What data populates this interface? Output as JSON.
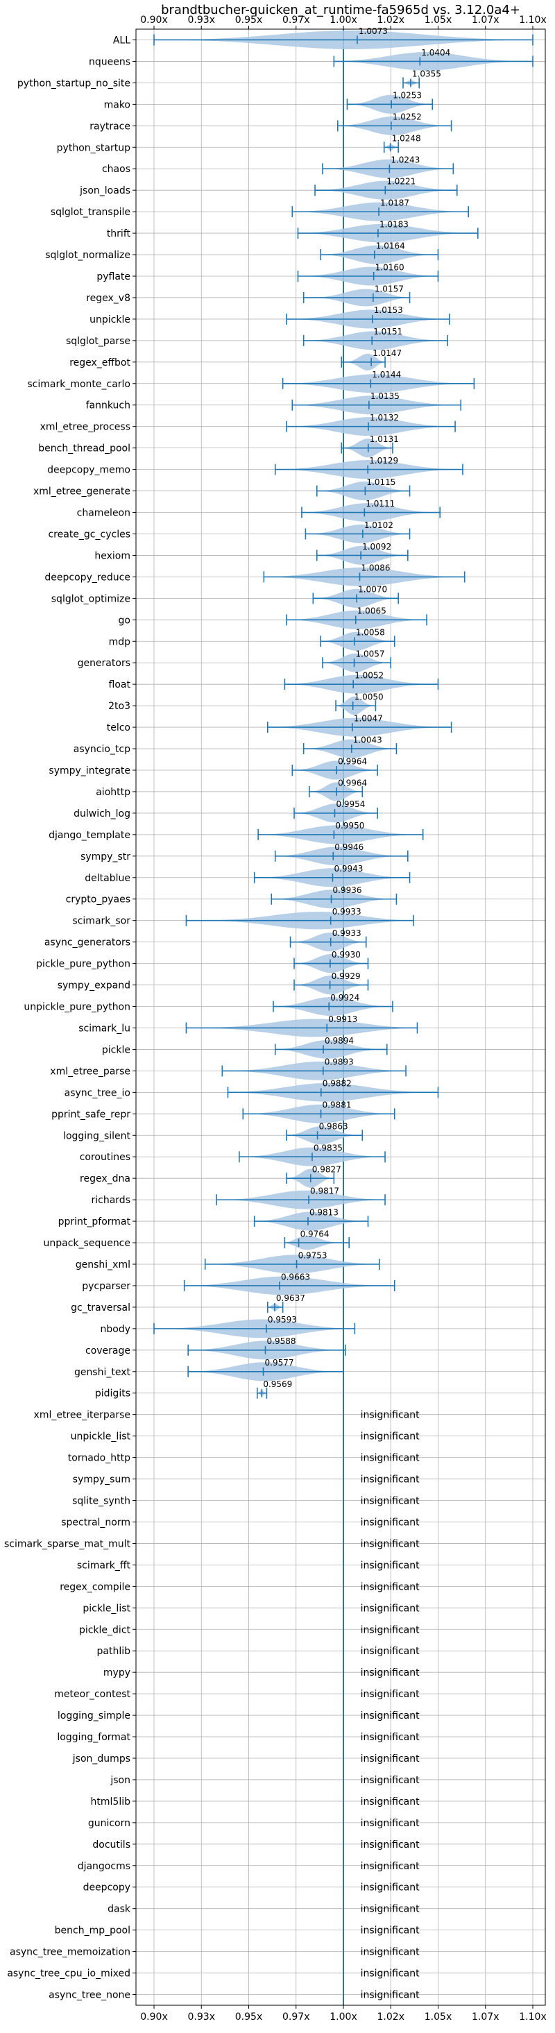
{
  "chart_data": {
    "type": "violin",
    "title": "brandtbucher-quicken_at_runtime-fa5965d vs. 3.12.0a4+",
    "xlim": [
      0.9,
      1.1
    ],
    "xticks": [
      "0.90x",
      "0.93x",
      "0.95x",
      "0.97x",
      "1.00x",
      "1.02x",
      "1.05x",
      "1.07x",
      "1.10x"
    ],
    "xtick_values": [
      0.9,
      0.925,
      0.95,
      0.975,
      1.0,
      1.025,
      1.05,
      1.075,
      1.1
    ],
    "grid": true,
    "reference_line": 1.0,
    "insignificant_label": "insignificant",
    "benchmarks": [
      {
        "name": "ALL",
        "value": "1.0073",
        "mean": 1.0073,
        "min": 0.9,
        "max": 1.1,
        "width": 0.4
      },
      {
        "name": "nqueens",
        "value": "1.0404",
        "mean": 1.0404,
        "min": 0.995,
        "max": 1.1,
        "width": 0.4
      },
      {
        "name": "python_startup_no_site",
        "value": "1.0355",
        "mean": 1.0355,
        "min": 1.0315,
        "max": 1.04,
        "width": 0.12
      },
      {
        "name": "mako",
        "value": "1.0253",
        "mean": 1.0253,
        "min": 1.002,
        "max": 1.047,
        "width": 0.4
      },
      {
        "name": "raytrace",
        "value": "1.0252",
        "mean": 1.0252,
        "min": 0.997,
        "max": 1.057,
        "width": 0.4
      },
      {
        "name": "python_startup",
        "value": "1.0248",
        "mean": 1.0248,
        "min": 1.0215,
        "max": 1.029,
        "width": 0.12
      },
      {
        "name": "chaos",
        "value": "1.0243",
        "mean": 1.0243,
        "min": 0.989,
        "max": 1.058,
        "width": 0.4
      },
      {
        "name": "json_loads",
        "value": "1.0221",
        "mean": 1.0221,
        "min": 0.985,
        "max": 1.06,
        "width": 0.4
      },
      {
        "name": "sqlglot_transpile",
        "value": "1.0187",
        "mean": 1.0187,
        "min": 0.973,
        "max": 1.066,
        "width": 0.4
      },
      {
        "name": "thrift",
        "value": "1.0183",
        "mean": 1.0183,
        "min": 0.976,
        "max": 1.071,
        "width": 0.4
      },
      {
        "name": "sqlglot_normalize",
        "value": "1.0164",
        "mean": 1.0164,
        "min": 0.988,
        "max": 1.05,
        "width": 0.4
      },
      {
        "name": "pyflate",
        "value": "1.0160",
        "mean": 1.016,
        "min": 0.976,
        "max": 1.05,
        "width": 0.4
      },
      {
        "name": "regex_v8",
        "value": "1.0157",
        "mean": 1.0157,
        "min": 0.979,
        "max": 1.035,
        "width": 0.4
      },
      {
        "name": "unpickle",
        "value": "1.0153",
        "mean": 1.0153,
        "min": 0.97,
        "max": 1.056,
        "width": 0.4
      },
      {
        "name": "sqlglot_parse",
        "value": "1.0151",
        "mean": 1.0151,
        "min": 0.979,
        "max": 1.055,
        "width": 0.4
      },
      {
        "name": "regex_effbot",
        "value": "1.0147",
        "mean": 1.0147,
        "min": 0.999,
        "max": 1.022,
        "width": 0.4
      },
      {
        "name": "scimark_monte_carlo",
        "value": "1.0144",
        "mean": 1.0144,
        "min": 0.968,
        "max": 1.069,
        "width": 0.4
      },
      {
        "name": "fannkuch",
        "value": "1.0135",
        "mean": 1.0135,
        "min": 0.973,
        "max": 1.062,
        "width": 0.4
      },
      {
        "name": "xml_etree_process",
        "value": "1.0132",
        "mean": 1.0132,
        "min": 0.97,
        "max": 1.059,
        "width": 0.4
      },
      {
        "name": "bench_thread_pool",
        "value": "1.0131",
        "mean": 1.0131,
        "min": 0.999,
        "max": 1.026,
        "width": 0.4
      },
      {
        "name": "deepcopy_memo",
        "value": "1.0129",
        "mean": 1.0129,
        "min": 0.964,
        "max": 1.063,
        "width": 0.4
      },
      {
        "name": "xml_etree_generate",
        "value": "1.0115",
        "mean": 1.0115,
        "min": 0.986,
        "max": 1.035,
        "width": 0.4
      },
      {
        "name": "chameleon",
        "value": "1.0111",
        "mean": 1.0111,
        "min": 0.978,
        "max": 1.051,
        "width": 0.4
      },
      {
        "name": "create_gc_cycles",
        "value": "1.0102",
        "mean": 1.0102,
        "min": 0.98,
        "max": 1.035,
        "width": 0.4
      },
      {
        "name": "hexiom",
        "value": "1.0092",
        "mean": 1.0092,
        "min": 0.986,
        "max": 1.034,
        "width": 0.4
      },
      {
        "name": "deepcopy_reduce",
        "value": "1.0086",
        "mean": 1.0086,
        "min": 0.958,
        "max": 1.064,
        "width": 0.4
      },
      {
        "name": "sqlglot_optimize",
        "value": "1.0070",
        "mean": 1.007,
        "min": 0.984,
        "max": 1.029,
        "width": 0.4
      },
      {
        "name": "go",
        "value": "1.0065",
        "mean": 1.0065,
        "min": 0.97,
        "max": 1.044,
        "width": 0.4
      },
      {
        "name": "mdp",
        "value": "1.0058",
        "mean": 1.0058,
        "min": 0.988,
        "max": 1.027,
        "width": 0.4
      },
      {
        "name": "generators",
        "value": "1.0057",
        "mean": 1.0057,
        "min": 0.989,
        "max": 1.025,
        "width": 0.4
      },
      {
        "name": "float",
        "value": "1.0052",
        "mean": 1.0052,
        "min": 0.969,
        "max": 1.05,
        "width": 0.4
      },
      {
        "name": "2to3",
        "value": "1.0050",
        "mean": 1.005,
        "min": 0.996,
        "max": 1.017,
        "width": 0.4
      },
      {
        "name": "telco",
        "value": "1.0047",
        "mean": 1.0047,
        "min": 0.96,
        "max": 1.057,
        "width": 0.4
      },
      {
        "name": "asyncio_tcp",
        "value": "1.0043",
        "mean": 1.0043,
        "min": 0.979,
        "max": 1.028,
        "width": 0.4
      },
      {
        "name": "sympy_integrate",
        "value": "0.9964",
        "mean": 0.9964,
        "min": 0.973,
        "max": 1.018,
        "width": 0.4
      },
      {
        "name": "aiohttp",
        "value": "0.9964",
        "mean": 0.9964,
        "min": 0.982,
        "max": 1.01,
        "width": 0.4
      },
      {
        "name": "dulwich_log",
        "value": "0.9954",
        "mean": 0.9954,
        "min": 0.974,
        "max": 1.018,
        "width": 0.4
      },
      {
        "name": "django_template",
        "value": "0.9950",
        "mean": 0.995,
        "min": 0.955,
        "max": 1.042,
        "width": 0.4
      },
      {
        "name": "sympy_str",
        "value": "0.9946",
        "mean": 0.9946,
        "min": 0.964,
        "max": 1.034,
        "width": 0.4
      },
      {
        "name": "deltablue",
        "value": "0.9943",
        "mean": 0.9943,
        "min": 0.953,
        "max": 1.035,
        "width": 0.4
      },
      {
        "name": "crypto_pyaes",
        "value": "0.9936",
        "mean": 0.9936,
        "min": 0.962,
        "max": 1.028,
        "width": 0.4
      },
      {
        "name": "scimark_sor",
        "value": "0.9933",
        "mean": 0.9933,
        "min": 0.917,
        "max": 1.037,
        "width": 0.4
      },
      {
        "name": "async_generators",
        "value": "0.9933",
        "mean": 0.9933,
        "min": 0.972,
        "max": 1.012,
        "width": 0.4
      },
      {
        "name": "pickle_pure_python",
        "value": "0.9930",
        "mean": 0.993,
        "min": 0.974,
        "max": 1.013,
        "width": 0.4
      },
      {
        "name": "sympy_expand",
        "value": "0.9929",
        "mean": 0.9929,
        "min": 0.974,
        "max": 1.013,
        "width": 0.4
      },
      {
        "name": "unpickle_pure_python",
        "value": "0.9924",
        "mean": 0.9924,
        "min": 0.963,
        "max": 1.026,
        "width": 0.4
      },
      {
        "name": "scimark_lu",
        "value": "0.9913",
        "mean": 0.9913,
        "min": 0.917,
        "max": 1.039,
        "width": 0.4
      },
      {
        "name": "pickle",
        "value": "0.9894",
        "mean": 0.9894,
        "min": 0.964,
        "max": 1.023,
        "width": 0.4
      },
      {
        "name": "xml_etree_parse",
        "value": "0.9893",
        "mean": 0.9893,
        "min": 0.936,
        "max": 1.033,
        "width": 0.4
      },
      {
        "name": "async_tree_io",
        "value": "0.9882",
        "mean": 0.9882,
        "min": 0.939,
        "max": 1.05,
        "width": 0.4
      },
      {
        "name": "pprint_safe_repr",
        "value": "0.9881",
        "mean": 0.9881,
        "min": 0.947,
        "max": 1.027,
        "width": 0.4
      },
      {
        "name": "logging_silent",
        "value": "0.9863",
        "mean": 0.9863,
        "min": 0.97,
        "max": 1.01,
        "width": 0.4
      },
      {
        "name": "coroutines",
        "value": "0.9835",
        "mean": 0.9835,
        "min": 0.945,
        "max": 1.022,
        "width": 0.4
      },
      {
        "name": "regex_dna",
        "value": "0.9827",
        "mean": 0.9827,
        "min": 0.97,
        "max": 0.995,
        "width": 0.4
      },
      {
        "name": "richards",
        "value": "0.9817",
        "mean": 0.9817,
        "min": 0.933,
        "max": 1.022,
        "width": 0.4
      },
      {
        "name": "pprint_pformat",
        "value": "0.9813",
        "mean": 0.9813,
        "min": 0.953,
        "max": 1.013,
        "width": 0.4
      },
      {
        "name": "unpack_sequence",
        "value": "0.9764",
        "mean": 0.9764,
        "min": 0.969,
        "max": 1.003,
        "width": 0.4
      },
      {
        "name": "genshi_xml",
        "value": "0.9753",
        "mean": 0.9753,
        "min": 0.927,
        "max": 1.019,
        "width": 0.4
      },
      {
        "name": "pycparser",
        "value": "0.9663",
        "mean": 0.9663,
        "min": 0.916,
        "max": 1.027,
        "width": 0.4
      },
      {
        "name": "gc_traversal",
        "value": "0.9637",
        "mean": 0.9637,
        "min": 0.96,
        "max": 0.968,
        "width": 0.15
      },
      {
        "name": "nbody",
        "value": "0.9593",
        "mean": 0.9593,
        "min": 0.9,
        "max": 1.006,
        "width": 0.4
      },
      {
        "name": "coverage",
        "value": "0.9588",
        "mean": 0.9588,
        "min": 0.918,
        "max": 1.001,
        "width": 0.4
      },
      {
        "name": "genshi_text",
        "value": "0.9577",
        "mean": 0.9577,
        "min": 0.918,
        "max": 1.0,
        "width": 0.4
      },
      {
        "name": "pidigits",
        "value": "0.9569",
        "mean": 0.9569,
        "min": 0.9545,
        "max": 0.9595,
        "width": 0.12
      },
      {
        "name": "xml_etree_iterparse",
        "insignificant": true
      },
      {
        "name": "unpickle_list",
        "insignificant": true
      },
      {
        "name": "tornado_http",
        "insignificant": true
      },
      {
        "name": "sympy_sum",
        "insignificant": true
      },
      {
        "name": "sqlite_synth",
        "insignificant": true
      },
      {
        "name": "spectral_norm",
        "insignificant": true
      },
      {
        "name": "scimark_sparse_mat_mult",
        "insignificant": true
      },
      {
        "name": "scimark_fft",
        "insignificant": true
      },
      {
        "name": "regex_compile",
        "insignificant": true
      },
      {
        "name": "pickle_list",
        "insignificant": true
      },
      {
        "name": "pickle_dict",
        "insignificant": true
      },
      {
        "name": "pathlib",
        "insignificant": true
      },
      {
        "name": "mypy",
        "insignificant": true
      },
      {
        "name": "meteor_contest",
        "insignificant": true
      },
      {
        "name": "logging_simple",
        "insignificant": true
      },
      {
        "name": "logging_format",
        "insignificant": true
      },
      {
        "name": "json_dumps",
        "insignificant": true
      },
      {
        "name": "json",
        "insignificant": true
      },
      {
        "name": "html5lib",
        "insignificant": true
      },
      {
        "name": "gunicorn",
        "insignificant": true
      },
      {
        "name": "docutils",
        "insignificant": true
      },
      {
        "name": "djangocms",
        "insignificant": true
      },
      {
        "name": "deepcopy",
        "insignificant": true
      },
      {
        "name": "dask",
        "insignificant": true
      },
      {
        "name": "bench_mp_pool",
        "insignificant": true
      },
      {
        "name": "async_tree_memoization",
        "insignificant": true
      },
      {
        "name": "async_tree_cpu_io_mixed",
        "insignificant": true
      },
      {
        "name": "async_tree_none",
        "insignificant": true
      }
    ],
    "colors": {
      "violin": "#aac8e4",
      "line": "#1f77b4",
      "grid": "#b0b0b0",
      "axis": "#000000"
    }
  }
}
